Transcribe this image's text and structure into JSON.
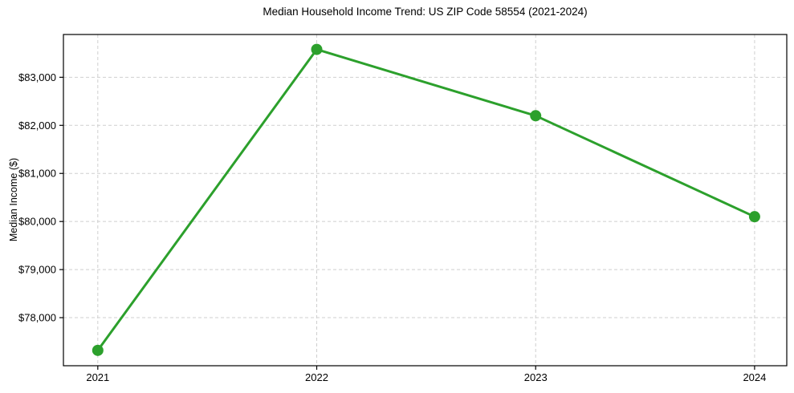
{
  "chart_data": {
    "type": "line",
    "title": "Median Household Income Trend: US ZIP Code 58554 (2021-2024)",
    "xlabel": "",
    "ylabel": "Median Income ($)",
    "categories": [
      "2021",
      "2022",
      "2023",
      "2024"
    ],
    "x": [
      2021,
      2022,
      2023,
      2024
    ],
    "series": [
      {
        "name": "Median Household Income",
        "values": [
          77320,
          83580,
          82200,
          80100
        ]
      }
    ],
    "yticks": [
      78000,
      79000,
      80000,
      81000,
      82000,
      83000
    ],
    "ytick_labels": [
      "$78,000",
      "$79,000",
      "$80,000",
      "$81,000",
      "$82,000",
      "$83,000"
    ],
    "xlim": [
      2020.843,
      2024.147
    ],
    "ylim": [
      77000,
      83890
    ],
    "grid": true,
    "grid_style": "dashed",
    "legend": "none",
    "marker_style": "circle",
    "line_width": 3,
    "marker_radius": 7,
    "colors": {
      "line": "#2ca02c",
      "marker": "#2ca02c",
      "grid": "#cfcfcf",
      "axis": "#000000",
      "text": "#000000",
      "background": "#ffffff"
    }
  }
}
